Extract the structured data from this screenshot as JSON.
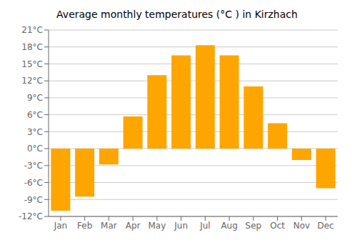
{
  "chart_data": {
    "type": "bar",
    "title": "Average monthly temperatures (°C ) in Kirzhach",
    "categories": [
      "Jan",
      "Feb",
      "Mar",
      "Apr",
      "May",
      "Jun",
      "Jul",
      "Aug",
      "Sep",
      "Oct",
      "Nov",
      "Dec"
    ],
    "values": [
      -11,
      -8.5,
      -2.8,
      5.7,
      13.0,
      16.5,
      18.3,
      16.5,
      11.0,
      4.5,
      -2.0,
      -7.0
    ],
    "color": "#FFA500",
    "ylim": [
      -12,
      21
    ],
    "yticks": [
      {
        "value": -12,
        "label": "-12°C"
      },
      {
        "value": -9,
        "label": "-9°C"
      },
      {
        "value": -6,
        "label": "-6°C"
      },
      {
        "value": -3,
        "label": "-3°C"
      },
      {
        "value": 0,
        "label": "0°C"
      },
      {
        "value": 3,
        "label": "3°C"
      },
      {
        "value": 6,
        "label": "6°C"
      },
      {
        "value": 9,
        "label": "9°C"
      },
      {
        "value": 12,
        "label": "12°C"
      },
      {
        "value": 15,
        "label": "15°C"
      },
      {
        "value": 18,
        "label": "18°C"
      },
      {
        "value": 21,
        "label": "21°C"
      }
    ],
    "grid": true
  }
}
